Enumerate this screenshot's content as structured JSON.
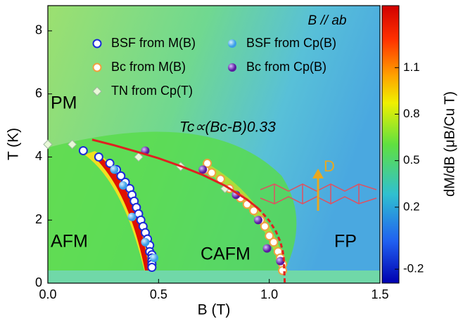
{
  "chart_data": {
    "type": "scatter",
    "xlabel": "B (T)",
    "ylabel": "T (K)",
    "colorbar_label": "dM/dB (μB/Cu T)",
    "xlim": [
      0,
      1.5
    ],
    "ylim": [
      0,
      8.8
    ],
    "xticks": [
      {
        "value": 0,
        "label": "0.0"
      },
      {
        "value": 0.5,
        "label": "0.5"
      },
      {
        "value": 1,
        "label": "1.0"
      },
      {
        "value": 1.5,
        "label": "1.5"
      }
    ],
    "yticks": [
      0,
      2,
      4,
      6,
      8
    ],
    "clim": [
      -0.29,
      1.5
    ],
    "cticks": [
      -0.2,
      0.2,
      0.5,
      0.8,
      1.1
    ],
    "annotations": [
      "B // ab",
      "PM",
      "AFM",
      "CAFM",
      "FP",
      "D",
      "Tc∝(Bc-B)0.33"
    ],
    "series": [
      {
        "name": "BSF from M(B)",
        "marker": "circle",
        "color": "#ffffff",
        "edgecolor": "#1a2ad8",
        "x": [
          0.16,
          0.23,
          0.28,
          0.31,
          0.33,
          0.35,
          0.37,
          0.38,
          0.39,
          0.4,
          0.41,
          0.42,
          0.43,
          0.44,
          0.45,
          0.46,
          0.46,
          0.47,
          0.47,
          0.47,
          0.47,
          0.47
        ],
        "values": [
          4.2,
          4.0,
          3.8,
          3.6,
          3.4,
          3.2,
          3.0,
          2.8,
          2.6,
          2.4,
          2.2,
          2.0,
          1.8,
          1.6,
          1.4,
          1.2,
          1.0,
          0.9,
          0.8,
          0.7,
          0.6,
          0.5
        ]
      },
      {
        "name": "BSF from Cp(B)",
        "marker": "ball",
        "color": "#3a9ee8",
        "x": [
          0.3,
          0.34,
          0.38,
          0.44,
          0.48
        ],
        "values": [
          3.6,
          3.1,
          2.1,
          1.3,
          0.8
        ]
      },
      {
        "name": "Bc from M(B)",
        "marker": "circle",
        "color": "#ffffff",
        "edgecolor": "#f0a040",
        "x": [
          0.71,
          0.72,
          0.74,
          0.78,
          0.82,
          0.87,
          0.9,
          0.93,
          0.96,
          0.98,
          1.0,
          1.02,
          1.04,
          1.05,
          1.06,
          1.06
        ],
        "values": [
          3.6,
          3.8,
          3.5,
          3.3,
          3.0,
          2.7,
          2.5,
          2.3,
          2.0,
          1.8,
          1.5,
          1.3,
          1.0,
          0.8,
          0.6,
          0.4
        ]
      },
      {
        "name": "Bc from Cp(B)",
        "marker": "ball",
        "color": "#5a1aa0",
        "x": [
          0.44,
          0.7,
          0.85,
          0.95,
          0.99,
          1.05
        ],
        "values": [
          4.2,
          3.6,
          2.8,
          2.0,
          1.1,
          0.7
        ]
      },
      {
        "name": "TN from Cp(T)",
        "marker": "diamond",
        "color": "#e8f8d8",
        "edgecolor": "#a0b8a0",
        "x": [
          0.0,
          0.11,
          0.41,
          0.6,
          0.8
        ],
        "values": [
          4.4,
          4.4,
          4.0,
          3.7,
          3.0
        ]
      },
      {
        "marker": "line",
        "style": "solid",
        "color": "#e02020",
        "x": [
          0.2,
          0.3,
          0.4,
          0.5,
          0.6,
          0.7,
          0.8,
          0.9,
          0.95
        ],
        "values": [
          4.55,
          4.37,
          4.17,
          3.96,
          3.71,
          3.43,
          3.09,
          2.65,
          2.37
        ]
      },
      {
        "marker": "line",
        "style": "dashed",
        "color": "#e02020",
        "x": [
          0.95,
          1.0,
          1.03,
          1.05,
          1.06,
          1.065,
          1.07
        ],
        "values": [
          2.37,
          1.98,
          1.64,
          1.31,
          1.04,
          0.83,
          0
        ]
      }
    ]
  }
}
